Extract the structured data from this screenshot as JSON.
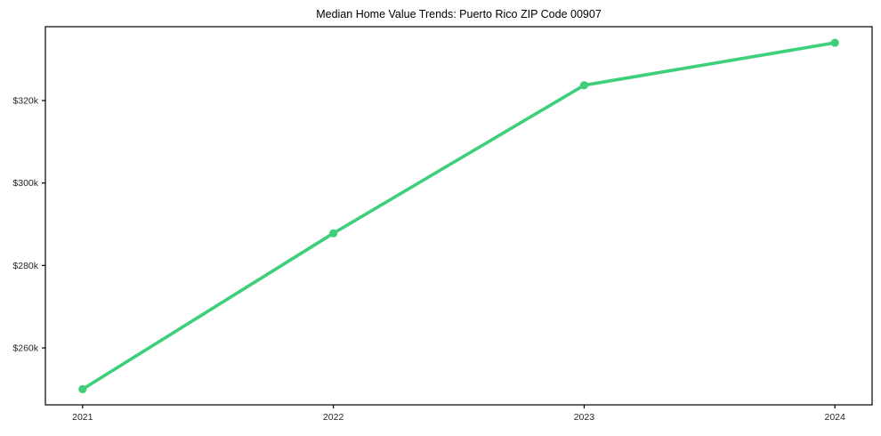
{
  "chart_data": {
    "type": "line",
    "title": "Median Home Value Trends: Puerto Rico ZIP Code 00907",
    "categories": [
      "2021",
      "2022",
      "2023",
      "2024"
    ],
    "series": [
      {
        "name": "Median Home Value",
        "values": [
          250000,
          287800,
          323700,
          334000
        ]
      }
    ],
    "xlabel": "",
    "ylabel": "",
    "yticks": [
      260000,
      280000,
      300000,
      320000
    ],
    "ytick_labels": [
      "$260k",
      "$280k",
      "$300k",
      "$320k"
    ],
    "ylim": [
      246200,
      337900
    ],
    "grid": false,
    "legend_position": "none",
    "line_color": "#3ecf7b",
    "marker_color": "#3ecf7b",
    "axis_color": "#000000",
    "tick_text_color": "#262626",
    "background_color": "#ffffff"
  }
}
